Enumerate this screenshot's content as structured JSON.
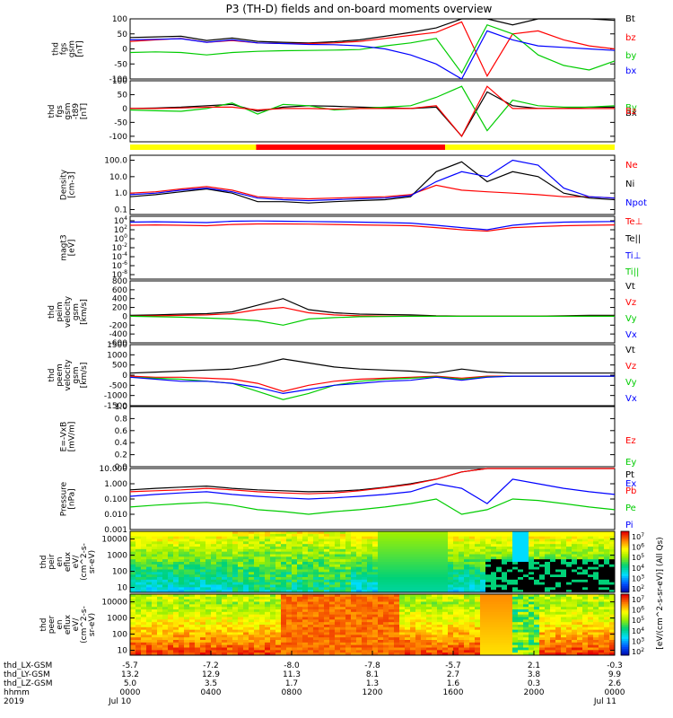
{
  "title": "P3 (TH-D) fields and on-board moments overview",
  "colors": {
    "black": "#000000",
    "red": "#ff0000",
    "green": "#00cc00",
    "blue": "#0000ff",
    "yellow": "#ffff00"
  },
  "chart_data": {
    "type": "line",
    "time_range": [
      "2019-07-10 00:00",
      "2019-07-11 00:00"
    ],
    "panels": [
      {
        "id": "fgs-gsm",
        "ylabel_lines": [
          "thd",
          "fgs",
          "gsm",
          "[nT]"
        ],
        "ylim": [
          -100,
          100
        ],
        "ticks": [
          "100",
          "50",
          "0",
          "-50",
          "-100"
        ],
        "legend": [
          {
            "label": "Bt",
            "color": "black"
          },
          {
            "label": "bz",
            "color": "red"
          },
          {
            "label": "by",
            "color": "green"
          },
          {
            "label": "bx",
            "color": "blue"
          }
        ],
        "series": [
          {
            "name": "Bt",
            "color": "black",
            "values": [
              38,
              40,
              42,
              28,
              36,
              25,
              22,
              20,
              24,
              30,
              42,
              55,
              70,
              100,
              100,
              80,
              100,
              100,
              100,
              95
            ]
          },
          {
            "name": "bz",
            "color": "red",
            "values": [
              25,
              30,
              35,
              22,
              28,
              20,
              18,
              18,
              20,
              25,
              35,
              45,
              55,
              90,
              -90,
              50,
              60,
              30,
              10,
              0
            ]
          },
          {
            "name": "by",
            "color": "green",
            "values": [
              -12,
              -10,
              -12,
              -20,
              -12,
              -8,
              -6,
              -5,
              -4,
              -2,
              10,
              20,
              35,
              -80,
              80,
              50,
              -20,
              -55,
              -70,
              -40
            ]
          },
          {
            "name": "bx",
            "color": "blue",
            "values": [
              30,
              32,
              34,
              22,
              30,
              20,
              18,
              15,
              14,
              10,
              0,
              -20,
              -50,
              -100,
              60,
              30,
              10,
              5,
              0,
              -5
            ]
          }
        ]
      },
      {
        "id": "fgs-gsm-t89",
        "ylabel_lines": [
          "thd",
          "fgs",
          "gsm",
          "-t89",
          "[nT]"
        ],
        "ylim": [
          -120,
          100
        ],
        "ticks": [
          "100",
          "50",
          "0",
          "-50",
          "-100"
        ],
        "legend": [
          {
            "label": "Bx",
            "color": "black"
          },
          {
            "label": "By",
            "color": "green"
          },
          {
            "label": "Bz",
            "color": "red"
          }
        ],
        "series": [
          {
            "name": "Bx",
            "color": "black",
            "values": [
              0,
              2,
              5,
              10,
              15,
              -10,
              5,
              10,
              8,
              5,
              3,
              0,
              5,
              -100,
              60,
              10,
              0,
              0,
              5,
              5
            ]
          },
          {
            "name": "By",
            "color": "green",
            "values": [
              -5,
              -8,
              -10,
              0,
              20,
              -20,
              15,
              10,
              -5,
              0,
              5,
              10,
              40,
              80,
              -80,
              30,
              10,
              5,
              5,
              10
            ]
          },
          {
            "name": "Bz",
            "color": "red",
            "values": [
              0,
              0,
              2,
              5,
              5,
              -5,
              0,
              0,
              -2,
              0,
              0,
              0,
              10,
              -100,
              80,
              0,
              0,
              0,
              0,
              0
            ]
          }
        ]
      },
      {
        "id": "density",
        "ylabel_lines": [
          "Density",
          "[cm-3]"
        ],
        "scale": "log",
        "ylim": [
          0.05,
          200
        ],
        "ticks": [
          "100.0",
          "10.0",
          "1.0",
          "0.1"
        ],
        "legend": [
          {
            "label": "Ne",
            "color": "red"
          },
          {
            "label": "Ni",
            "color": "black"
          },
          {
            "label": "Npot",
            "color": "blue"
          }
        ],
        "series": [
          {
            "name": "Ne",
            "color": "red",
            "values": [
              1,
              1.2,
              1.8,
              2.5,
              1.5,
              0.6,
              0.5,
              0.45,
              0.5,
              0.55,
              0.6,
              0.8,
              3,
              1.5,
              1.2,
              1,
              0.8,
              0.6,
              0.6,
              0.5
            ]
          },
          {
            "name": "Ni",
            "color": "black",
            "values": [
              0.6,
              0.8,
              1.2,
              1.8,
              1,
              0.3,
              0.3,
              0.25,
              0.3,
              0.35,
              0.4,
              0.6,
              20,
              80,
              5,
              20,
              10,
              1,
              0.5,
              0.4
            ]
          },
          {
            "name": "Npot",
            "color": "blue",
            "values": [
              0.8,
              1,
              1.5,
              2,
              1.2,
              0.5,
              0.4,
              0.35,
              0.4,
              0.45,
              0.5,
              0.7,
              5,
              20,
              10,
              100,
              50,
              2,
              0.6,
              0.5
            ]
          }
        ]
      },
      {
        "id": "magt3",
        "ylabel_lines": [
          "magt3",
          "[eV]"
        ],
        "scale": "log",
        "ylim": [
          1e-09,
          100000.0
        ],
        "ticks": [
          "10^4",
          "10^2",
          "10^0",
          "10^-2",
          "10^-4",
          "10^-6",
          "10^-8"
        ],
        "legend": [
          {
            "label": "Te⊥",
            "color": "red"
          },
          {
            "label": "Te||",
            "color": "black"
          },
          {
            "label": "Ti⊥",
            "color": "blue"
          },
          {
            "label": "Ti||",
            "color": "green"
          }
        ],
        "series": [
          {
            "name": "Te⊥",
            "color": "red",
            "values": [
              1000,
              1200,
              1000,
              800,
              1500,
              2000,
              2000,
              1800,
              1500,
              1200,
              1000,
              800,
              300,
              100,
              50,
              300,
              500,
              800,
              1000,
              1200
            ]
          },
          {
            "name": "Ti⊥",
            "color": "blue",
            "values": [
              5000,
              6000,
              5000,
              4000,
              8000,
              9000,
              8000,
              7000,
              6000,
              5000,
              4000,
              3000,
              1000,
              300,
              100,
              1000,
              3000,
              5000,
              6000,
              7000
            ]
          }
        ]
      },
      {
        "id": "peim-velocity",
        "ylabel_lines": [
          "thd",
          "peim",
          "velocity",
          "gsm",
          "[km/s]"
        ],
        "ylim": [
          -600,
          800
        ],
        "ticks": [
          "800",
          "600",
          "400",
          "200",
          "0",
          "-200",
          "-400",
          "-600"
        ],
        "legend": [
          {
            "label": "Vt",
            "color": "black"
          },
          {
            "label": "Vz",
            "color": "red"
          },
          {
            "label": "Vy",
            "color": "green"
          },
          {
            "label": "Vx",
            "color": "blue"
          }
        ],
        "series": [
          {
            "name": "Vt",
            "color": "black",
            "values": [
              20,
              30,
              50,
              60,
              100,
              250,
              400,
              150,
              80,
              50,
              40,
              30,
              10,
              5,
              5,
              5,
              5,
              10,
              20,
              20
            ]
          },
          {
            "name": "Vz",
            "color": "red",
            "values": [
              0,
              10,
              20,
              30,
              60,
              150,
              200,
              80,
              30,
              10,
              5,
              0,
              0,
              0,
              0,
              0,
              0,
              0,
              0,
              0
            ]
          },
          {
            "name": "Vy",
            "color": "green",
            "values": [
              0,
              -10,
              -20,
              -40,
              -60,
              -100,
              -200,
              -60,
              -30,
              -10,
              -5,
              0,
              0,
              0,
              0,
              0,
              0,
              0,
              0,
              0
            ]
          }
        ]
      },
      {
        "id": "peem-velocity",
        "ylabel_lines": [
          "thd",
          "peem",
          "velocity",
          "gsm",
          "[km/s]"
        ],
        "ylim": [
          -1500,
          1500
        ],
        "ticks": [
          "1500",
          "1000",
          "500",
          "0",
          "-500",
          "-1000",
          "-1500"
        ],
        "legend": [
          {
            "label": "Vt",
            "color": "black"
          },
          {
            "label": "Vz",
            "color": "red"
          },
          {
            "label": "Vy",
            "color": "green"
          },
          {
            "label": "Vx",
            "color": "blue"
          }
        ],
        "series": [
          {
            "name": "Vt",
            "color": "black",
            "values": [
              100,
              150,
              200,
              250,
              300,
              500,
              800,
              600,
              400,
              300,
              250,
              200,
              100,
              300,
              150,
              100,
              100,
              100,
              100,
              100
            ]
          },
          {
            "name": "Vz",
            "color": "red",
            "values": [
              -50,
              -100,
              -100,
              -150,
              -200,
              -400,
              -800,
              -500,
              -300,
              -200,
              -150,
              -100,
              -50,
              -150,
              -50,
              -50,
              -50,
              -50,
              -50,
              -50
            ]
          },
          {
            "name": "Vy",
            "color": "green",
            "values": [
              -100,
              -150,
              -200,
              -300,
              -400,
              -800,
              -1200,
              -900,
              -500,
              -300,
              -200,
              -150,
              -80,
              -200,
              -80,
              -50,
              -50,
              -50,
              -50,
              -50
            ]
          },
          {
            "name": "Vx",
            "color": "blue",
            "values": [
              -100,
              -200,
              -300,
              -300,
              -400,
              -600,
              -900,
              -700,
              -500,
              -400,
              -300,
              -250,
              -100,
              -250,
              -100,
              -50,
              -50,
              -50,
              -50,
              -50
            ]
          }
        ]
      },
      {
        "id": "efield",
        "ylabel_lines": [
          "E=-VxB",
          "[mV/m]"
        ],
        "ylim": [
          0,
          1
        ],
        "ticks": [
          "1.0",
          "0.8",
          "0.6",
          "0.4",
          "0.2",
          "0.0"
        ],
        "legend": [
          {
            "label": "Ez",
            "color": "red"
          },
          {
            "label": "Ey",
            "color": "green"
          },
          {
            "label": "Ex",
            "color": "blue"
          }
        ],
        "series": []
      },
      {
        "id": "pressure",
        "ylabel_lines": [
          "Pressure",
          "[nPa]"
        ],
        "scale": "log",
        "ylim": [
          0.001,
          10
        ],
        "ticks": [
          "10.000",
          "1.000",
          "0.100",
          "0.010",
          "0.001"
        ],
        "legend": [
          {
            "label": "Pt",
            "color": "black"
          },
          {
            "label": "Pb",
            "color": "red"
          },
          {
            "label": "Pe",
            "color": "green"
          },
          {
            "label": "Pi",
            "color": "blue"
          }
        ],
        "series": [
          {
            "name": "Pt",
            "color": "black",
            "values": [
              0.4,
              0.5,
              0.6,
              0.7,
              0.5,
              0.4,
              0.35,
              0.3,
              0.32,
              0.4,
              0.6,
              1,
              2,
              6,
              10,
              10,
              10,
              10,
              10,
              10
            ]
          },
          {
            "name": "Pb",
            "color": "red",
            "values": [
              0.3,
              0.35,
              0.4,
              0.5,
              0.4,
              0.3,
              0.25,
              0.22,
              0.25,
              0.35,
              0.55,
              0.9,
              2,
              6,
              10,
              10,
              10,
              10,
              10,
              10
            ]
          },
          {
            "name": "Pe",
            "color": "green",
            "values": [
              0.03,
              0.04,
              0.05,
              0.06,
              0.04,
              0.02,
              0.015,
              0.01,
              0.015,
              0.02,
              0.03,
              0.05,
              0.1,
              0.01,
              0.02,
              0.1,
              0.08,
              0.05,
              0.03,
              0.02
            ]
          },
          {
            "name": "Pi",
            "color": "blue",
            "values": [
              0.15,
              0.2,
              0.25,
              0.3,
              0.2,
              0.15,
              0.12,
              0.1,
              0.12,
              0.15,
              0.2,
              0.3,
              1,
              0.5,
              0.05,
              2,
              1,
              0.5,
              0.3,
              0.2
            ]
          }
        ]
      },
      {
        "id": "peir-en-eflux",
        "type": "heatmap",
        "ylabel_lines": [
          "thd",
          "peir",
          "en",
          "eflux",
          "eV/",
          "(cm^2-s-",
          "sr-eV)"
        ],
        "scale": "log",
        "ylim": [
          5,
          30000
        ],
        "ticks": [
          "10000",
          "1000",
          "100",
          "10"
        ],
        "zlim": [
          100,
          10000000
        ]
      },
      {
        "id": "peer-en-eflux",
        "type": "heatmap",
        "ylabel_lines": [
          "thd",
          "peer",
          "en",
          "eflux",
          "eV/",
          "(cm^2-s-",
          "sr-eV)"
        ],
        "scale": "log",
        "ylim": [
          5,
          30000
        ],
        "ticks": [
          "10000",
          "1000",
          "100",
          "10"
        ],
        "zlim": [
          100,
          10000000
        ]
      }
    ],
    "colorbar": {
      "label": "[eV/(cm^2-s-sr-eV)] (All Qs)",
      "ticks": [
        "10^7",
        "10^6",
        "10^5",
        "10^4",
        "10^3",
        "10^2"
      ]
    },
    "x_axis": {
      "row_labels": [
        "thd_LX-GSM",
        "thd_LY-GSM",
        "thd_LZ-GSM",
        "hhmm",
        "2019"
      ],
      "ticks": [
        {
          "values": [
            "-5.7",
            "13.2",
            "5.0",
            "0000",
            "Jul 10"
          ]
        },
        {
          "values": [
            "-7.2",
            "12.9",
            "3.5",
            "0400",
            ""
          ]
        },
        {
          "values": [
            "-8.0",
            "11.3",
            "1.7",
            "0800",
            ""
          ]
        },
        {
          "values": [
            "-7.8",
            "8.1",
            "1.3",
            "1200",
            ""
          ]
        },
        {
          "values": [
            "-5.7",
            "2.7",
            "1.6",
            "1600",
            ""
          ]
        },
        {
          "values": [
            "2.1",
            "3.8",
            "0.3",
            "2000",
            ""
          ]
        },
        {
          "values": [
            "-0.3",
            "9.9",
            "2.6",
            "0000",
            "Jul 11"
          ]
        }
      ]
    },
    "region_bar": [
      {
        "from": 0,
        "to": 0.26,
        "color": "yellow"
      },
      {
        "from": 0.26,
        "to": 0.65,
        "color": "red"
      },
      {
        "from": 0.65,
        "to": 1,
        "color": "yellow"
      }
    ]
  }
}
